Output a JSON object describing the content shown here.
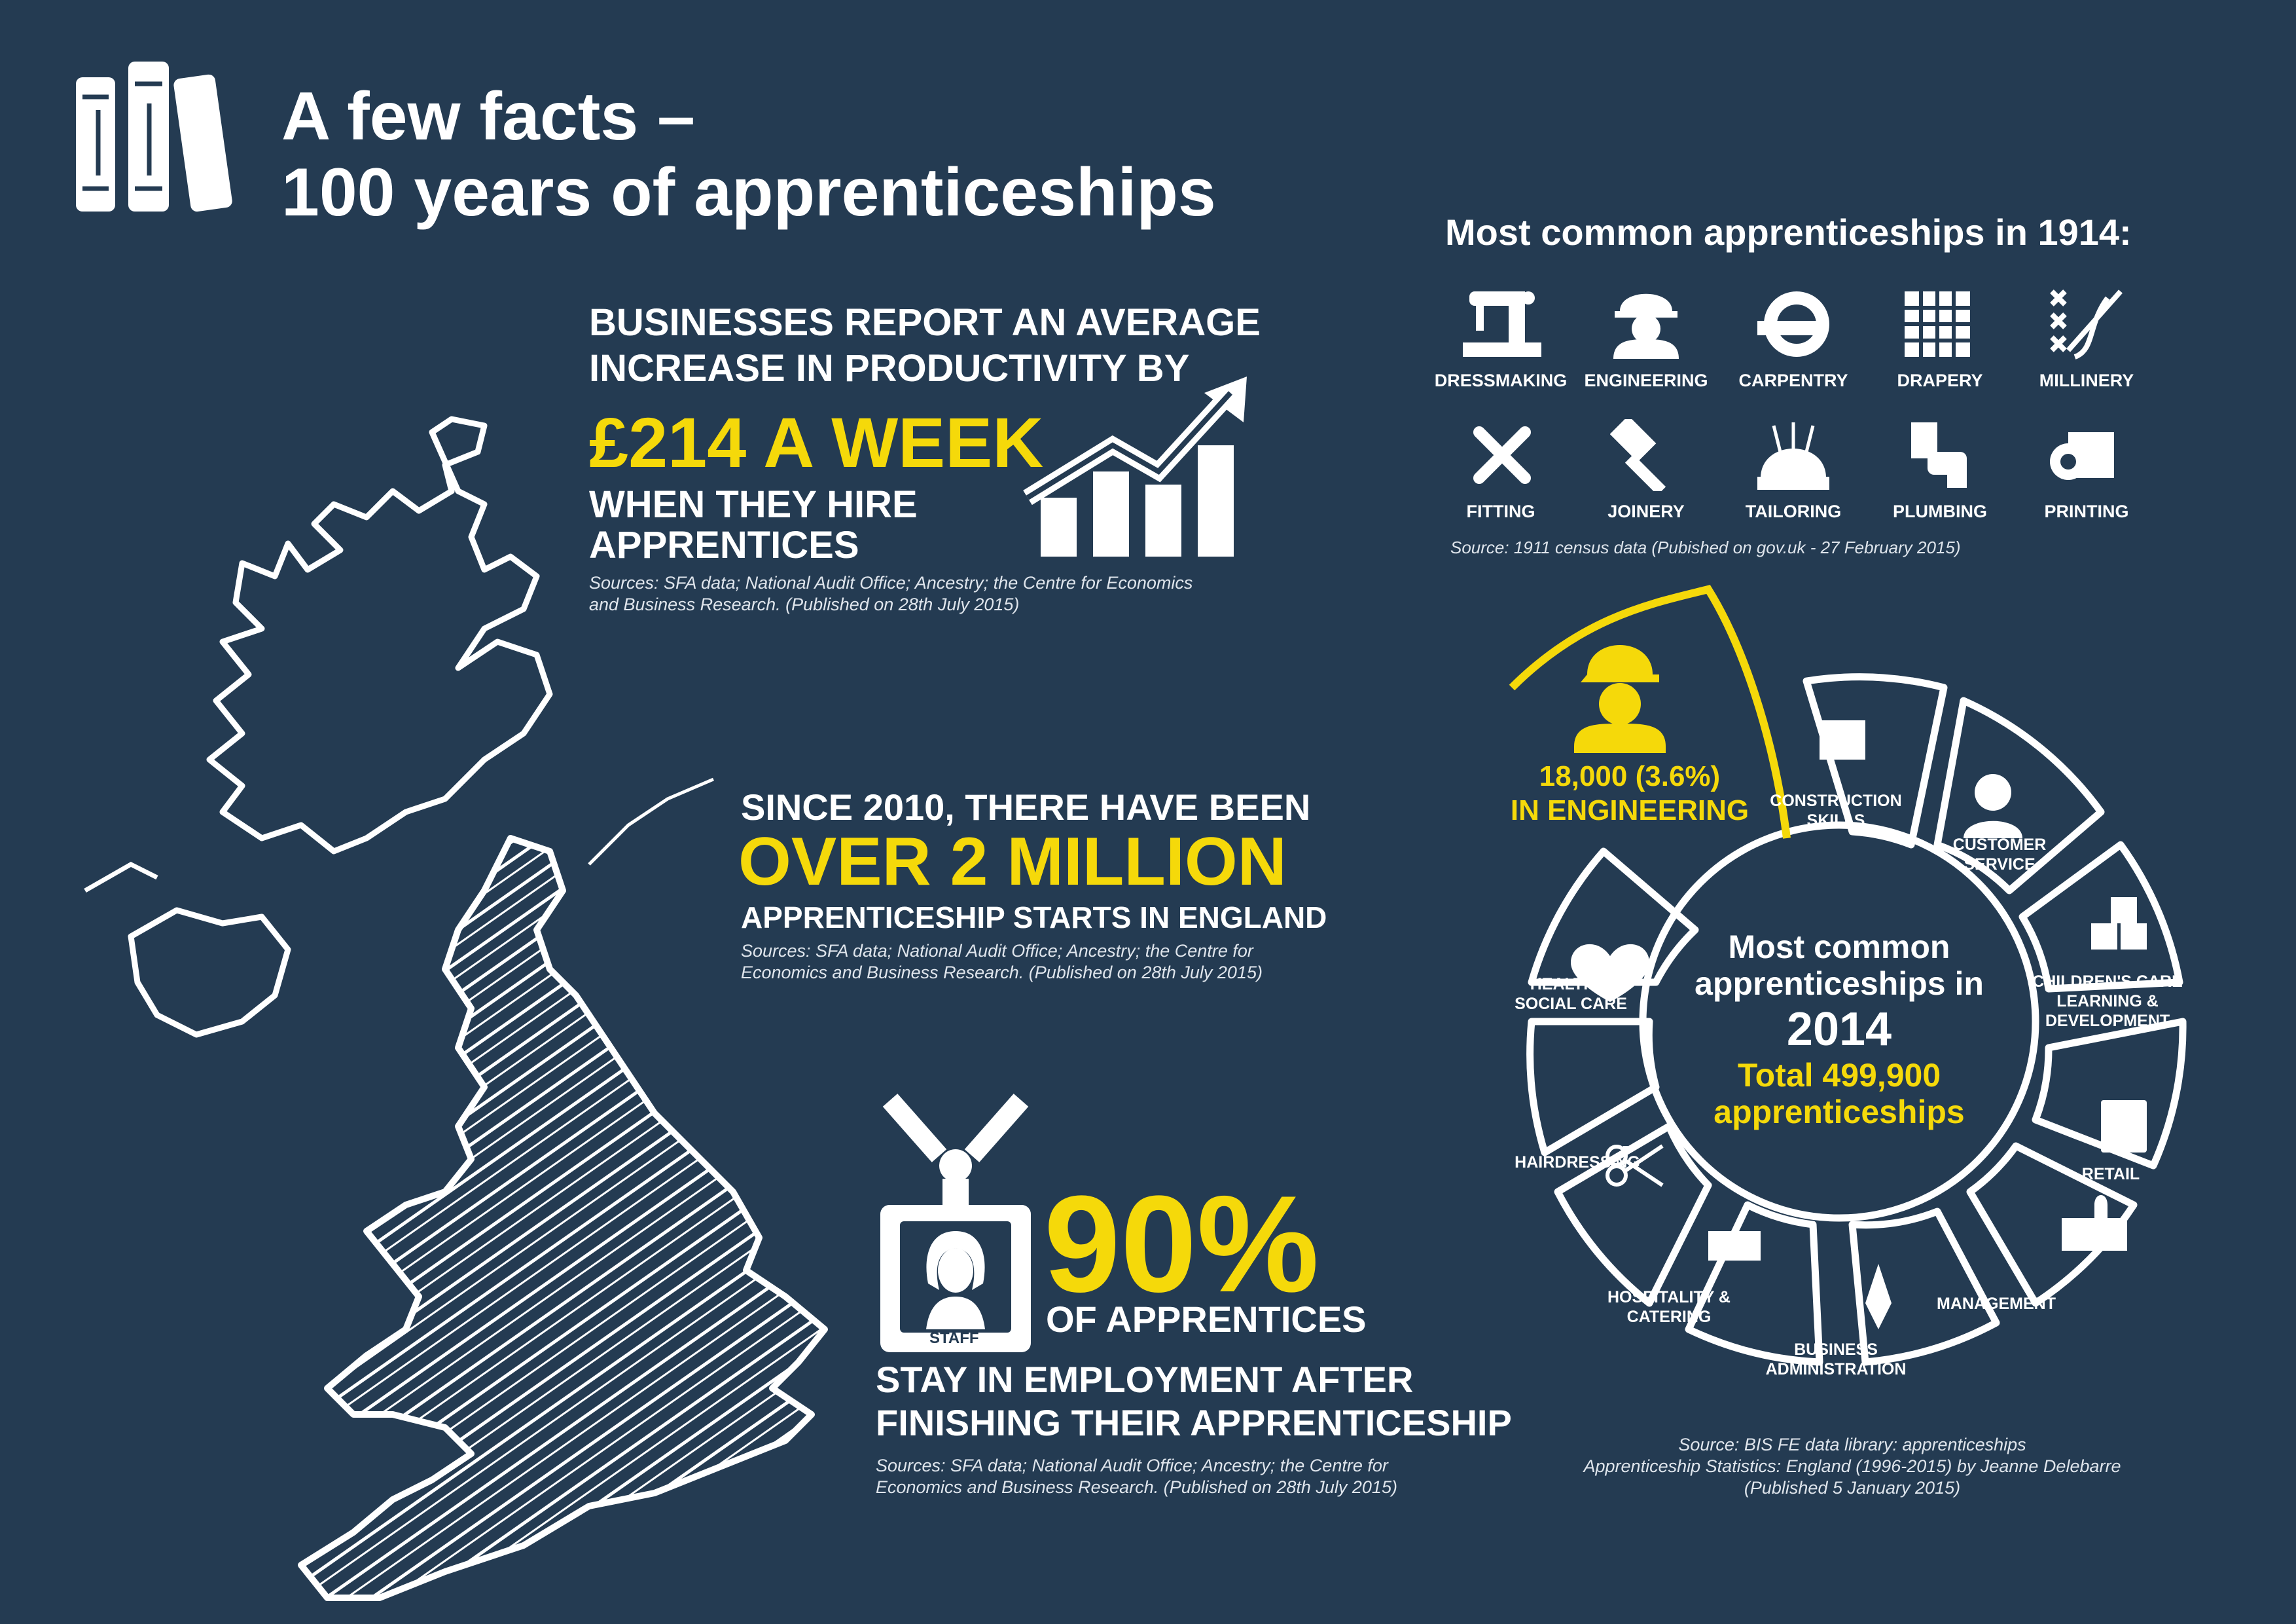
{
  "title": {
    "line1": "A few facts –",
    "line2": "100 years of apprenticeships"
  },
  "productivity": {
    "line1": "BUSINESSES REPORT AN AVERAGE",
    "line2": "INCREASE IN PRODUCTIVITY BY",
    "amount": "£214 A WEEK",
    "line3": "WHEN THEY HIRE",
    "line4": "APPRENTICES",
    "source1": "Sources: SFA data; National Audit Office; Ancestry; the Centre for Economics",
    "source2": "and Business Research. (Published on 28th July 2015)"
  },
  "starts": {
    "line1": "SINCE 2010, THERE HAVE BEEN",
    "amount": "OVER 2 MILLION",
    "line2": "APPRENTICESHIP STARTS IN ENGLAND",
    "source1": "Sources: SFA data; National Audit Office; Ancestry; the Centre for",
    "source2": "Economics and Business Research. (Published on 28th July 2015)"
  },
  "employment": {
    "badge": "STAFF",
    "percent": "90%",
    "line1": "OF APPRENTICES",
    "line2": "STAY IN EMPLOYMENT AFTER",
    "line3": "FINISHING THEIR APPRENTICESHIP",
    "source1": "Sources: SFA data; National Audit Office; Ancestry; the Centre for",
    "source2": "Economics and Business Research. (Published on 28th July 2015)"
  },
  "common1914": {
    "heading": "Most common apprenticeships in 1914:",
    "items": [
      "DRESSMAKING",
      "ENGINEERING",
      "CARPENTRY",
      "DRAPERY",
      "MILLINERY",
      "FITTING",
      "JOINERY",
      "TAILORING",
      "PLUMBING",
      "PRINTING"
    ],
    "source": "Source: 1911 census data (Pubished on gov.uk - 27 February 2015)"
  },
  "common2014": {
    "center1": "Most common",
    "center2": "apprenticeships in",
    "center3": "2014",
    "total1": "Total 499,900",
    "total2": "apprenticeships",
    "highlight1": "18,000 (3.6%)",
    "highlight2": "IN ENGINEERING",
    "segments": {
      "construction": [
        "CONSTRUCTION",
        "SKILLS"
      ],
      "customer": [
        "CUSTOMER",
        "SERVICE"
      ],
      "children": [
        "CHILDREN'S CARE",
        "LEARNING &",
        "DEVELOPMENT"
      ],
      "retail": [
        "RETAIL"
      ],
      "management": [
        "MANAGEMENT"
      ],
      "business": [
        "BUSINESS",
        "ADMINISTRATION"
      ],
      "hospitality": [
        "HOSPITALITY &",
        "CATERING"
      ],
      "hairdressing": [
        "HAIRDRESSING"
      ],
      "health": [
        "HEALTH &",
        "SOCIAL CARE"
      ]
    },
    "source1": "Source: BIS FE data library: apprenticeships",
    "source2": "Apprenticeship Statistics: England (1996-2015) by Jeanne Delebarre",
    "source3": "(Published 5 January 2015)"
  },
  "colors": {
    "background": "#243b52",
    "accent": "#f5d90a",
    "text": "#ffffff"
  }
}
